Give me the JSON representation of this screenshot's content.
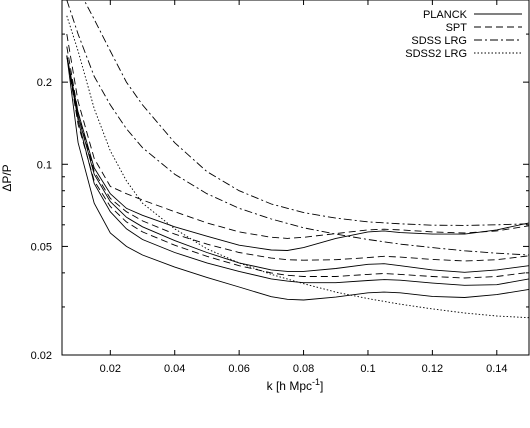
{
  "chart_data": {
    "type": "line",
    "title": "",
    "xlabel_main": "k [h Mpc",
    "xlabel_sup": "-1",
    "xlabel_end": "]",
    "ylabel": "ΔP/P",
    "xlim": [
      0.005,
      0.15
    ],
    "ylim": [
      0.02,
      0.4
    ],
    "yscale": "log",
    "xticks": [
      0.02,
      0.04,
      0.06,
      0.08,
      0.1,
      0.12,
      0.14
    ],
    "xtick_labels": [
      "0.02",
      "0.04",
      "0.06",
      "0.08",
      "0.1",
      "0.12",
      "0.14"
    ],
    "yticks": [
      0.02,
      0.05,
      0.1,
      0.2
    ],
    "ytick_labels": [
      "0.02",
      "0.05",
      "0.1",
      "0.2"
    ],
    "legend_position": "top-right",
    "grid": false,
    "series": [
      {
        "name": "PLANCK",
        "style": "solid",
        "x": [
          0.0065,
          0.01,
          0.015,
          0.02,
          0.025,
          0.03,
          0.04,
          0.05,
          0.06,
          0.07,
          0.075,
          0.08,
          0.09,
          0.1,
          0.105,
          0.11,
          0.12,
          0.13,
          0.14,
          0.15
        ],
        "y": [
          0.25,
          0.155,
          0.097,
          0.078,
          0.069,
          0.065,
          0.059,
          0.0545,
          0.0505,
          0.0485,
          0.0483,
          0.0495,
          0.0535,
          0.0565,
          0.057,
          0.0562,
          0.0555,
          0.0555,
          0.0575,
          0.061
        ]
      },
      {
        "name": "",
        "style": "solid",
        "x": [
          0.0065,
          0.01,
          0.015,
          0.02,
          0.025,
          0.03,
          0.04,
          0.05,
          0.06,
          0.07,
          0.075,
          0.08,
          0.09,
          0.1,
          0.105,
          0.11,
          0.12,
          0.13,
          0.14,
          0.15
        ],
        "y": [
          0.25,
          0.15,
          0.092,
          0.073,
          0.064,
          0.059,
          0.0525,
          0.0475,
          0.0435,
          0.041,
          0.0405,
          0.0405,
          0.0415,
          0.043,
          0.0432,
          0.0425,
          0.041,
          0.0402,
          0.041,
          0.0425
        ]
      },
      {
        "name": "",
        "style": "solid",
        "x": [
          0.0065,
          0.01,
          0.015,
          0.02,
          0.025,
          0.03,
          0.04,
          0.05,
          0.06,
          0.07,
          0.075,
          0.08,
          0.09,
          0.1,
          0.105,
          0.11,
          0.12,
          0.13,
          0.14,
          0.15
        ],
        "y": [
          0.25,
          0.145,
          0.085,
          0.067,
          0.058,
          0.053,
          0.0475,
          0.0435,
          0.0405,
          0.038,
          0.0373,
          0.0368,
          0.0368,
          0.0375,
          0.0378,
          0.0376,
          0.0367,
          0.036,
          0.0362,
          0.038
        ]
      },
      {
        "name": "",
        "style": "solid",
        "x": [
          0.0065,
          0.01,
          0.015,
          0.02,
          0.025,
          0.03,
          0.04,
          0.05,
          0.06,
          0.07,
          0.075,
          0.08,
          0.09,
          0.1,
          0.105,
          0.11,
          0.12,
          0.13,
          0.14,
          0.15
        ],
        "y": [
          0.25,
          0.12,
          0.072,
          0.056,
          0.05,
          0.0465,
          0.042,
          0.0385,
          0.0355,
          0.0327,
          0.032,
          0.0318,
          0.0326,
          0.0338,
          0.034,
          0.0338,
          0.0328,
          0.0325,
          0.0333,
          0.0348
        ]
      },
      {
        "name": "SPT",
        "style": "dashed",
        "x": [
          0.0065,
          0.01,
          0.015,
          0.02,
          0.025,
          0.03,
          0.04,
          0.05,
          0.06,
          0.07,
          0.075,
          0.08,
          0.09,
          0.1,
          0.105,
          0.11,
          0.12,
          0.13,
          0.14,
          0.15
        ],
        "y": [
          0.3,
          0.17,
          0.105,
          0.083,
          0.078,
          0.074,
          0.067,
          0.061,
          0.0565,
          0.054,
          0.0535,
          0.054,
          0.0557,
          0.0575,
          0.0578,
          0.0575,
          0.0565,
          0.056,
          0.057,
          0.0595
        ]
      },
      {
        "name": "",
        "style": "dashed",
        "x": [
          0.0065,
          0.01,
          0.015,
          0.02,
          0.025,
          0.03,
          0.04,
          0.05,
          0.06,
          0.07,
          0.075,
          0.08,
          0.09,
          0.1,
          0.105,
          0.11,
          0.12,
          0.13,
          0.14,
          0.15
        ],
        "y": [
          0.27,
          0.155,
          0.094,
          0.075,
          0.067,
          0.062,
          0.0555,
          0.051,
          0.0475,
          0.0453,
          0.0447,
          0.0445,
          0.0447,
          0.0455,
          0.046,
          0.0457,
          0.0448,
          0.0442,
          0.0447,
          0.0462
        ]
      },
      {
        "name": "",
        "style": "dashed",
        "x": [
          0.0065,
          0.01,
          0.015,
          0.02,
          0.025,
          0.03,
          0.04,
          0.05,
          0.06,
          0.07,
          0.075,
          0.08,
          0.09,
          0.1,
          0.105,
          0.11,
          0.12,
          0.13,
          0.14,
          0.15
        ],
        "y": [
          0.25,
          0.14,
          0.087,
          0.07,
          0.0615,
          0.0565,
          0.0505,
          0.046,
          0.0425,
          0.04,
          0.0392,
          0.0388,
          0.0388,
          0.0395,
          0.0398,
          0.0395,
          0.0388,
          0.0383,
          0.0388,
          0.0402
        ]
      },
      {
        "name": "SDSS LRG",
        "style": "dashdot",
        "x": [
          0.0065,
          0.01,
          0.015,
          0.02,
          0.025,
          0.03,
          0.04,
          0.05,
          0.06,
          0.07,
          0.08,
          0.09,
          0.1,
          0.11,
          0.12,
          0.13,
          0.14,
          0.15
        ],
        "y": [
          0.4,
          0.3,
          0.21,
          0.165,
          0.135,
          0.115,
          0.092,
          0.078,
          0.069,
          0.063,
          0.0585,
          0.0555,
          0.053,
          0.051,
          0.0495,
          0.0482,
          0.0472,
          0.0465
        ]
      },
      {
        "name": "",
        "style": "dashdot",
        "x": [
          0.0065,
          0.01,
          0.015,
          0.02,
          0.025,
          0.03,
          0.04,
          0.05,
          0.06,
          0.07,
          0.08,
          0.09,
          0.1,
          0.11,
          0.12,
          0.13,
          0.14,
          0.15
        ],
        "y": [
          0.45,
          0.44,
          0.34,
          0.26,
          0.2,
          0.165,
          0.12,
          0.094,
          0.08,
          0.0715,
          0.0665,
          0.0635,
          0.0615,
          0.0605,
          0.0598,
          0.0597,
          0.06,
          0.0605
        ]
      },
      {
        "name": "SDSS2 LRG",
        "style": "dotted",
        "x": [
          0.0065,
          0.01,
          0.015,
          0.02,
          0.025,
          0.03,
          0.04,
          0.05,
          0.06,
          0.07,
          0.08,
          0.09,
          0.1,
          0.11,
          0.12,
          0.13,
          0.14,
          0.15
        ],
        "y": [
          0.35,
          0.26,
          0.16,
          0.112,
          0.087,
          0.072,
          0.058,
          0.049,
          0.0435,
          0.0395,
          0.0365,
          0.034,
          0.0322,
          0.0307,
          0.0295,
          0.0285,
          0.0278,
          0.0274
        ]
      }
    ]
  }
}
